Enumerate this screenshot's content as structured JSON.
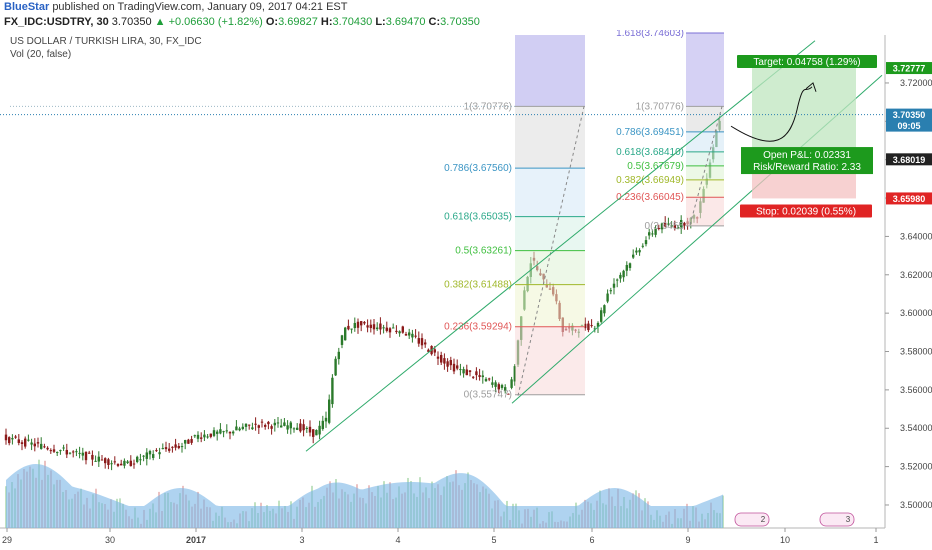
{
  "header": {
    "brand": "BlueStar",
    "published": "published on TradingView.com, January 09, 2017 04:21 EST"
  },
  "quote": {
    "symbol": "FX_IDC:USDTRY, 30",
    "last": "3.70350",
    "up_arrow": "▲",
    "change": "+0.06630 (+1.82%)",
    "o_label": "O:",
    "o": "3.69827",
    "h_label": "H:",
    "h": "3.70430",
    "l_label": "L:",
    "l": "3.69470",
    "c_label": "C:",
    "c": "3.70350"
  },
  "overlay": {
    "title": "US DOLLAR / TURKISH LIRA, 30, FX_IDC",
    "vol": "Vol (20, false)"
  },
  "colors": {
    "up": "#2b7a2b",
    "down": "#8b1a1a",
    "volume_area": "#7ab6e6",
    "channel": "#2faa6b",
    "fib_zero": "#9e9e9e",
    "fib_0236": "#e05656",
    "fib_0382": "#a0b82a",
    "fib_05": "#3fbf3f",
    "fib_0618": "#2aa889",
    "fib_0786": "#3b95c4",
    "fib_1618": "#7b6fd6",
    "target": "#1d9a1d",
    "stop": "#e02424",
    "last_price": "#2a7fb0"
  },
  "chart_data": {
    "type": "candlestick",
    "ylim": [
      3.488,
      3.745
    ],
    "y_ticks": [
      "3.72000",
      "3.70000",
      "3.68000",
      "3.66000",
      "3.64000",
      "3.62000",
      "3.60000",
      "3.58000",
      "3.56000",
      "3.54000",
      "3.52000",
      "3.50000"
    ],
    "x_ticks": [
      "29",
      "30",
      "2017",
      "3",
      "4",
      "5",
      "6",
      "9",
      "10",
      "1"
    ],
    "price_tags": [
      {
        "label": "3.72777",
        "value": 3.72777,
        "kind": "target"
      },
      {
        "label": "3.70350",
        "value": 3.7035,
        "kind": "last"
      },
      {
        "label": "09:05",
        "value": 3.6982,
        "kind": "time"
      },
      {
        "label": "3.68019",
        "value": 3.68019,
        "kind": "dark"
      },
      {
        "label": "3.65980",
        "value": 3.6598,
        "kind": "stop"
      }
    ],
    "fib_1": {
      "levels": [
        {
          "label": "1(3.70776)",
          "value": 3.70776
        },
        {
          "label": "0.786(3.67560)",
          "value": 3.6756
        },
        {
          "label": "0.618(3.65035)",
          "value": 3.65035
        },
        {
          "label": "0.5(3.63261)",
          "value": 3.63261
        },
        {
          "label": "0.382(3.61488)",
          "value": 3.61488
        },
        {
          "label": "0.236(3.59294)",
          "value": 3.59294
        },
        {
          "label": "0(3.55747)",
          "value": 3.55747
        }
      ]
    },
    "fib_2": {
      "levels": [
        {
          "label": "1.618(3.74603)",
          "value": 3.74603
        },
        {
          "label": "1(3.70776)",
          "value": 3.70776
        },
        {
          "label": "0.786(3.69451)",
          "value": 3.69451
        },
        {
          "label": "0.618(3.68410)",
          "value": 3.6841
        },
        {
          "label": "0.5(3.67679)",
          "value": 3.67679
        },
        {
          "label": "0.382(3.66949)",
          "value": 3.66949
        },
        {
          "label": "0.236(3.66045)",
          "value": 3.66045
        },
        {
          "label": "0(3.6455",
          "value": 3.6455
        }
      ]
    },
    "position": {
      "target_label": "Target: 0.04758 (1.29%)",
      "open_pl_label": "Open P&L: 0.02331",
      "risk_reward_label": "Risk/Reward Ratio: 2.33",
      "stop_label": "Stop: 0.02039 (0.55%)",
      "entry": 3.68019,
      "target": 3.72777,
      "stop": 3.6598
    },
    "event_markers": [
      "2",
      "3"
    ],
    "key_points": [
      {
        "x": "Dec 28",
        "y": 3.535
      },
      {
        "x": "Dec 30",
        "y": 3.522
      },
      {
        "x": "Jan 2",
        "y": 3.535
      },
      {
        "x": "Jan 3",
        "y": 3.537
      },
      {
        "x": "Jan 3",
        "y": 3.585
      },
      {
        "x": "Jan 3",
        "y": 3.598
      },
      {
        "x": "Jan 4",
        "y": 3.585
      },
      {
        "x": "Jan 5",
        "y": 3.558
      },
      {
        "x": "Jan 5",
        "y": 3.63
      },
      {
        "x": "Jan 5",
        "y": 3.59
      },
      {
        "x": "Jan 6",
        "y": 3.595
      },
      {
        "x": "Jan 6",
        "y": 3.625
      },
      {
        "x": "Jan 8",
        "y": 3.645
      },
      {
        "x": "Jan 9",
        "y": 3.65
      },
      {
        "x": "Jan 9",
        "y": 3.7035
      }
    ]
  }
}
